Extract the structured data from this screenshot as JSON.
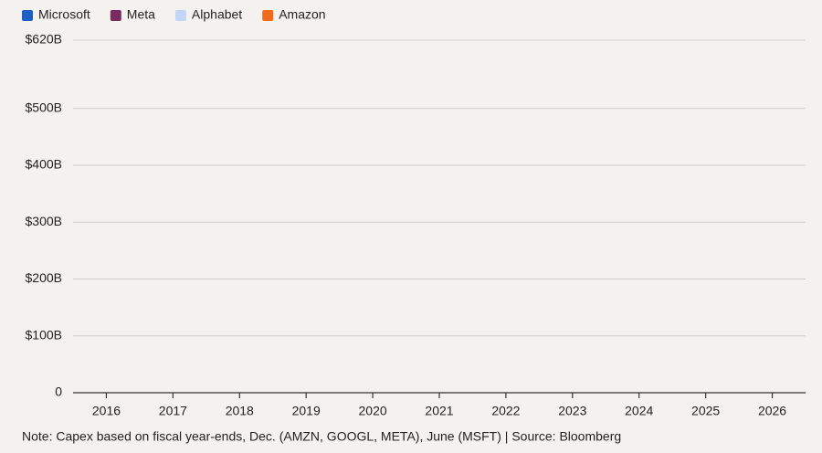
{
  "chart_data": {
    "type": "bar",
    "stacked": true,
    "categories": [
      "2016",
      "2017",
      "2018",
      "2019",
      "2020",
      "2021",
      "2022",
      "2023",
      "2024",
      "2025",
      "2026"
    ],
    "series": [
      {
        "name": "Microsoft",
        "color": "#1f5fc4",
        "values": [
          0,
          0,
          0,
          0,
          0,
          0,
          0,
          0,
          0,
          0,
          0
        ]
      },
      {
        "name": "Meta",
        "color": "#7a2a5e",
        "values": [
          0,
          0,
          0,
          0,
          0,
          0,
          0,
          0,
          0,
          0,
          0
        ]
      },
      {
        "name": "Alphabet",
        "color": "#c5d5f5",
        "values": [
          0,
          0,
          0,
          0,
          0,
          0,
          0,
          0,
          0,
          0,
          0
        ]
      },
      {
        "name": "Amazon",
        "color": "#f26b1d",
        "values": [
          0,
          0,
          0,
          0,
          0,
          0,
          0,
          0,
          0,
          0,
          0
        ]
      }
    ],
    "ylim": [
      0,
      620
    ],
    "yticks": [
      0,
      {
        "value": 100,
        "label": "$100B"
      },
      {
        "value": 200,
        "label": "$200B"
      },
      {
        "value": 300,
        "label": "$300B"
      },
      {
        "value": 400,
        "label": "$400B"
      },
      {
        "value": 500,
        "label": "$500B"
      },
      {
        "value": 620,
        "label": "$620B"
      }
    ],
    "grid": true,
    "note": "Note: Capex based on fiscal year-ends, Dec. (AMZN, GOOGL, META), June (MSFT)  |  Source: Bloomberg"
  }
}
